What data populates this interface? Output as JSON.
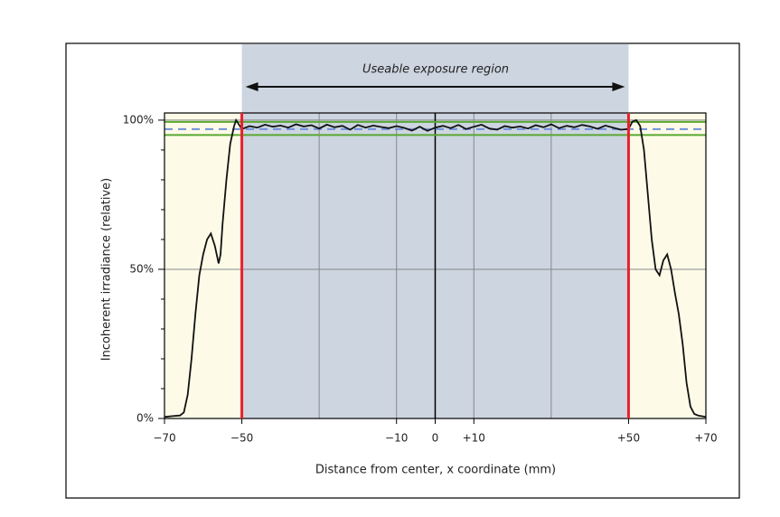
{
  "chart_data": {
    "type": "line",
    "annotation": "Useable exposure region",
    "x_label": "Distance from center, x coordinate (mm)",
    "y_label": "Incoherent irradiance (relative)",
    "xlim": [
      -70,
      70
    ],
    "ylim": [
      0,
      102.4
    ],
    "xticks": [
      {
        "value": -70,
        "label": "−70"
      },
      {
        "value": -50,
        "label": "−50"
      },
      {
        "value": -10,
        "label": "−10"
      },
      0,
      {
        "value": 10,
        "label": "+10"
      },
      {
        "value": 50,
        "label": "+50"
      },
      {
        "value": 70,
        "label": "+70"
      }
    ],
    "xgrid": [
      -30,
      -10,
      10,
      30
    ],
    "yticks": [
      {
        "value": 0,
        "label": "0%"
      },
      {
        "value": 50,
        "label": "50%"
      },
      {
        "value": 100,
        "label": "100%"
      }
    ],
    "yminor": [
      10,
      20,
      30,
      40,
      60,
      70,
      80,
      90
    ],
    "region": [
      -50,
      50
    ],
    "region_color": "#cdd5e1",
    "region_line_color": "#e8202a",
    "ref_lines": [
      {
        "value": 99.4,
        "color": "#5aa832",
        "dash": false
      },
      {
        "value": 95,
        "color": "#5aa832",
        "dash": false
      },
      {
        "value": 97,
        "color": "#7090d8",
        "dash": true
      }
    ],
    "series": [
      {
        "color": "#111111",
        "x": [
          -70,
          -68,
          -66,
          -65,
          -64,
          -63,
          -62,
          -61,
          -60,
          -59,
          -58,
          -57,
          -56,
          -55.5,
          -55,
          -54,
          -53,
          -52,
          -51.5,
          -51,
          -50,
          -48,
          -46,
          -44,
          -42,
          -40,
          -38,
          -36,
          -34,
          -32,
          -30,
          -28,
          -26,
          -24,
          -22,
          -20,
          -18,
          -16,
          -14,
          -12,
          -10,
          -8,
          -6,
          -4,
          -2,
          0,
          2,
          4,
          6,
          8,
          10,
          12,
          14,
          16,
          18,
          20,
          22,
          24,
          26,
          28,
          30,
          32,
          34,
          36,
          38,
          40,
          42,
          44,
          46,
          48,
          50,
          51,
          52,
          53,
          54,
          55,
          56,
          57,
          58,
          59,
          60,
          61,
          62,
          63,
          64,
          65,
          66,
          67,
          68,
          70
        ],
        "values": [
          0.5,
          0.8,
          1,
          2,
          8,
          20,
          35,
          48,
          55,
          60,
          62,
          58,
          52,
          55,
          65,
          80,
          92,
          98,
          100,
          99,
          97,
          98,
          97.5,
          98.5,
          97.8,
          98.2,
          97.5,
          98.6,
          97.9,
          98.3,
          97.2,
          98.5,
          97.6,
          98.1,
          96.8,
          98.4,
          97.5,
          98.2,
          97.7,
          97.3,
          98,
          97.4,
          96.5,
          97.8,
          96.4,
          97.5,
          98.1,
          97.3,
          98.4,
          97,
          97.8,
          98.5,
          97.2,
          96.8,
          98,
          97.5,
          97.9,
          97.2,
          98.3,
          97.6,
          98.6,
          97.3,
          98.1,
          97.6,
          98.4,
          97.9,
          97.1,
          98.2,
          97.5,
          96.8,
          97,
          99.5,
          100,
          98,
          90,
          75,
          60,
          50,
          48,
          53,
          55,
          50,
          42,
          35,
          25,
          12,
          4,
          1.5,
          1,
          0.5
        ]
      }
    ]
  }
}
